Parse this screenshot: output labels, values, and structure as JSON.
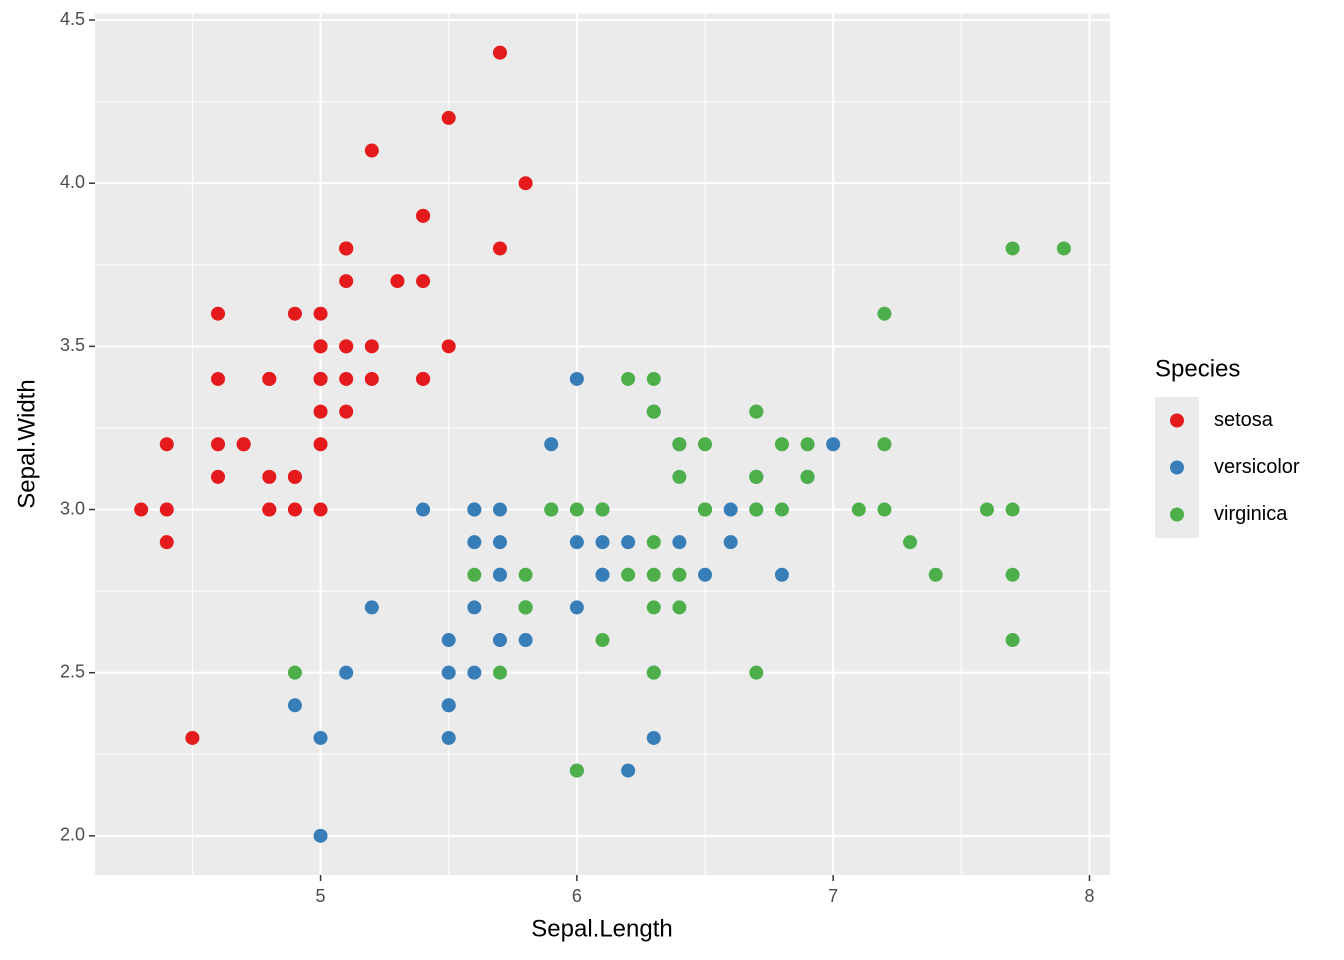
{
  "chart_data": {
    "type": "scatter",
    "x_label": "Sepal.Length",
    "y_label": "Sepal.Width",
    "legend_title": "Species",
    "legend": "right",
    "grid": true,
    "xlim": [
      4.12,
      8.08
    ],
    "ylim": [
      1.88,
      4.52
    ],
    "xticks": [
      5,
      6,
      7,
      8
    ],
    "yticks": [
      {
        "value": 2,
        "label": "2.0"
      },
      2.5,
      {
        "value": 3,
        "label": "3.0"
      },
      3.5,
      {
        "value": 4,
        "label": "4.0"
      },
      4.5
    ],
    "xminor": [
      4.5,
      5.5,
      6.5,
      7.5
    ],
    "yminor": [
      2.25,
      2.75,
      3.25,
      3.75,
      4.25
    ],
    "series": [
      {
        "name": "setosa",
        "color": "#e41a1c",
        "x": [
          5.1,
          4.9,
          4.7,
          4.6,
          5.0,
          5.4,
          4.6,
          5.0,
          4.4,
          4.9,
          5.4,
          4.8,
          4.8,
          4.3,
          5.8,
          5.7,
          5.4,
          5.1,
          5.7,
          5.1,
          5.4,
          5.1,
          4.6,
          5.1,
          4.8,
          5.0,
          5.0,
          5.2,
          5.2,
          4.7,
          4.8,
          5.4,
          5.2,
          5.5,
          4.9,
          5.0,
          5.5,
          4.9,
          4.4,
          5.1,
          5.0,
          4.5,
          4.4,
          5.0,
          5.1,
          4.8,
          5.1,
          4.6,
          5.3,
          5.0
        ],
        "values": [
          3.5,
          3.0,
          3.2,
          3.1,
          3.6,
          3.9,
          3.4,
          3.4,
          2.9,
          3.1,
          3.7,
          3.4,
          3.0,
          3.0,
          4.0,
          4.4,
          3.9,
          3.5,
          3.8,
          3.8,
          3.4,
          3.7,
          3.6,
          3.3,
          3.4,
          3.0,
          3.4,
          3.5,
          3.4,
          3.2,
          3.1,
          3.4,
          4.1,
          4.2,
          3.1,
          3.2,
          3.5,
          3.6,
          3.0,
          3.4,
          3.5,
          2.3,
          3.2,
          3.5,
          3.8,
          3.0,
          3.8,
          3.2,
          3.7,
          3.3
        ]
      },
      {
        "name": "versicolor",
        "color": "#377eb8",
        "x": [
          7.0,
          6.4,
          6.9,
          5.5,
          6.5,
          5.7,
          6.3,
          4.9,
          6.6,
          5.2,
          5.0,
          5.9,
          6.0,
          6.1,
          5.6,
          6.7,
          5.6,
          5.8,
          6.2,
          5.6,
          5.9,
          6.1,
          6.3,
          6.1,
          6.4,
          6.6,
          6.8,
          6.7,
          6.0,
          5.7,
          5.5,
          5.5,
          5.8,
          6.0,
          5.4,
          6.0,
          6.7,
          6.3,
          5.6,
          5.5,
          5.5,
          6.1,
          5.8,
          5.0,
          5.6,
          5.7,
          5.7,
          6.2,
          5.1,
          5.7
        ],
        "values": [
          3.2,
          3.2,
          3.1,
          2.3,
          2.8,
          2.8,
          3.3,
          2.4,
          2.9,
          2.7,
          2.0,
          3.0,
          2.2,
          2.9,
          2.9,
          3.1,
          3.0,
          2.7,
          2.2,
          2.5,
          3.2,
          2.8,
          2.5,
          2.8,
          2.9,
          3.0,
          2.8,
          3.0,
          2.9,
          2.6,
          2.4,
          2.4,
          2.7,
          2.7,
          3.0,
          3.4,
          3.1,
          2.3,
          3.0,
          2.5,
          2.6,
          3.0,
          2.6,
          2.3,
          2.7,
          3.0,
          2.9,
          2.9,
          2.5,
          2.8
        ]
      },
      {
        "name": "virginica",
        "color": "#4daf4a",
        "x": [
          6.3,
          5.8,
          7.1,
          6.3,
          6.5,
          7.6,
          4.9,
          7.3,
          6.7,
          7.2,
          6.5,
          6.4,
          6.8,
          5.7,
          5.8,
          6.4,
          6.5,
          7.7,
          7.7,
          6.0,
          6.9,
          5.6,
          7.7,
          6.3,
          6.7,
          7.2,
          6.2,
          6.1,
          6.4,
          7.2,
          7.4,
          7.9,
          6.4,
          6.3,
          6.1,
          7.7,
          6.3,
          6.4,
          6.0,
          6.9,
          6.7,
          6.9,
          5.8,
          6.8,
          6.7,
          6.7,
          6.3,
          6.5,
          6.2,
          5.9
        ],
        "values": [
          3.3,
          2.7,
          3.0,
          2.9,
          3.0,
          3.0,
          2.5,
          2.9,
          2.5,
          3.6,
          3.2,
          2.7,
          3.0,
          2.5,
          2.8,
          3.2,
          3.0,
          3.8,
          2.6,
          2.2,
          3.2,
          2.8,
          2.8,
          2.7,
          3.3,
          3.2,
          2.8,
          3.0,
          2.8,
          3.0,
          2.8,
          3.8,
          2.8,
          2.8,
          2.6,
          3.0,
          3.4,
          3.1,
          3.0,
          3.1,
          3.1,
          3.1,
          2.7,
          3.2,
          3.3,
          3.0,
          2.5,
          3.0,
          3.4,
          3.0
        ]
      }
    ]
  }
}
